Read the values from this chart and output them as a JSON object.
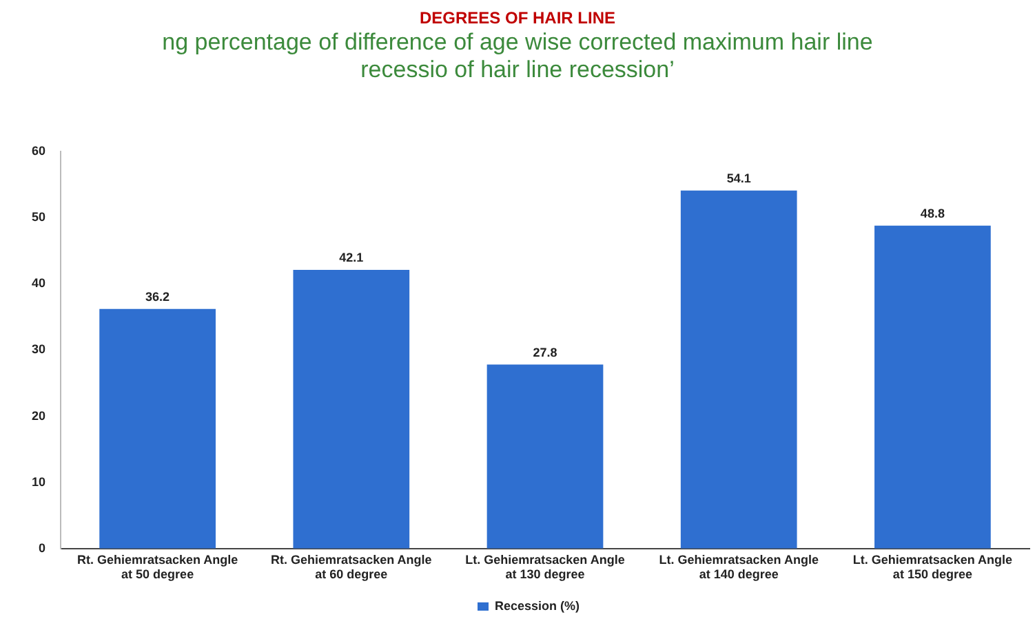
{
  "chart_data": {
    "type": "bar",
    "title": "DEGREES OF HAIR LINE",
    "subtitle": "ng percentage of difference of age wise corrected maximum hair line recessio of hair line recession’",
    "categories": [
      "Rt. Gehiemratsacken Angle at 50 degree",
      "Rt. Gehiemratsacken Angle at 60 degree",
      "Lt. Gehiemratsacken Angle at 130 degree",
      "Lt. Gehiemratsacken Angle at 140 degree",
      "Lt. Gehiemratsacken Angle at 150 degree"
    ],
    "series": [
      {
        "name": "Recession (%)",
        "color": "#2f6fd0",
        "values": [
          36.2,
          42.1,
          27.8,
          54.1,
          48.8
        ]
      }
    ],
    "ylim": [
      0,
      60
    ],
    "yticks": [
      0,
      10,
      20,
      30,
      40,
      50,
      60
    ],
    "grid": false,
    "legend": "bottom",
    "data_labels": true
  }
}
